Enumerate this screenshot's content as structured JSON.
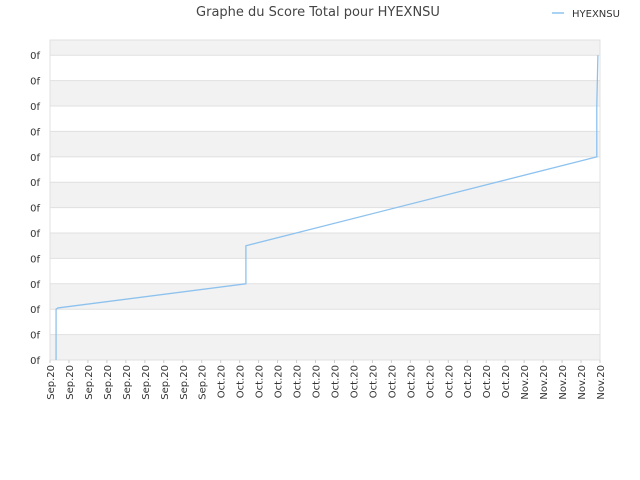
{
  "chart_data": {
    "type": "line",
    "title": "Graphe du Score Total pour HYEXNSU",
    "series": [
      {
        "name": "HYEXNSU",
        "color": "#8ec2ee",
        "x": [
          0.32,
          0.32,
          0.42,
          10.33,
          10.33,
          28.83,
          28.83,
          28.89
        ],
        "values": [
          0,
          2,
          2.05,
          3,
          4.5,
          8,
          10,
          12
        ]
      }
    ],
    "xlim": [
      0,
      29
    ],
    "xticks": [
      {
        "value": 0,
        "label": "Sep.20"
      },
      {
        "value": 1,
        "label": "Sep.20"
      },
      {
        "value": 2,
        "label": "Sep.20"
      },
      {
        "value": 3,
        "label": "Sep.20"
      },
      {
        "value": 4,
        "label": "Sep.20"
      },
      {
        "value": 5,
        "label": "Sep.20"
      },
      {
        "value": 6,
        "label": "Sep.20"
      },
      {
        "value": 7,
        "label": "Sep.20"
      },
      {
        "value": 8,
        "label": "Sep.20"
      },
      {
        "value": 9,
        "label": "Oct.20"
      },
      {
        "value": 10,
        "label": "Oct.20"
      },
      {
        "value": 11,
        "label": "Oct.20"
      },
      {
        "value": 12,
        "label": "Oct.20"
      },
      {
        "value": 13,
        "label": "Oct.20"
      },
      {
        "value": 14,
        "label": "Oct.20"
      },
      {
        "value": 15,
        "label": "Oct.20"
      },
      {
        "value": 16,
        "label": "Oct.20"
      },
      {
        "value": 17,
        "label": "Oct.20"
      },
      {
        "value": 18,
        "label": "Oct.20"
      },
      {
        "value": 19,
        "label": "Oct.20"
      },
      {
        "value": 20,
        "label": "Oct.20"
      },
      {
        "value": 21,
        "label": "Oct.20"
      },
      {
        "value": 22,
        "label": "Oct.20"
      },
      {
        "value": 23,
        "label": "Oct.20"
      },
      {
        "value": 24,
        "label": "Oct.20"
      },
      {
        "value": 25,
        "label": "Nov.20"
      },
      {
        "value": 26,
        "label": "Nov.20"
      },
      {
        "value": 27,
        "label": "Nov.20"
      },
      {
        "value": 28,
        "label": "Nov.20"
      },
      {
        "value": 29,
        "label": "Nov.20"
      }
    ],
    "ylim": [
      0,
      12.6
    ],
    "yticks": [
      {
        "value": 0,
        "label": "0f"
      },
      {
        "value": 1,
        "label": "0f"
      },
      {
        "value": 2,
        "label": "0f"
      },
      {
        "value": 3,
        "label": "0f"
      },
      {
        "value": 4,
        "label": "0f"
      },
      {
        "value": 5,
        "label": "0f"
      },
      {
        "value": 6,
        "label": "0f"
      },
      {
        "value": 7,
        "label": "0f"
      },
      {
        "value": 8,
        "label": "0f"
      },
      {
        "value": 9,
        "label": "0f"
      },
      {
        "value": 10,
        "label": "0f"
      },
      {
        "value": 11,
        "label": "0f"
      },
      {
        "value": 12,
        "label": "0f"
      }
    ],
    "grid": true,
    "legend": "top-right"
  }
}
